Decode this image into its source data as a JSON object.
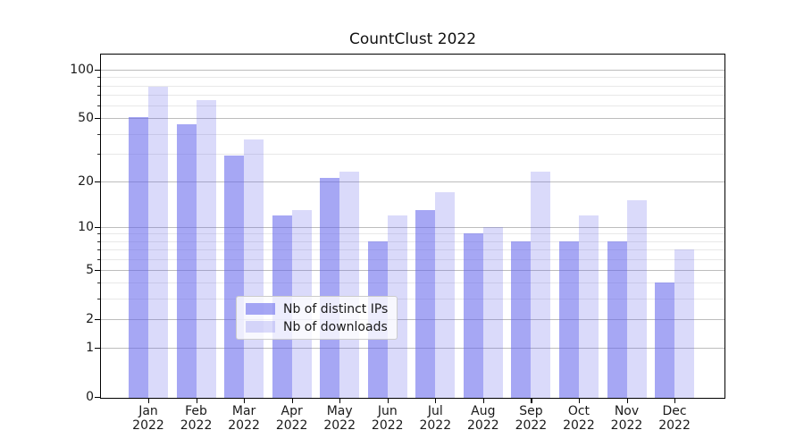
{
  "title": "CountClust 2022",
  "chart_data": {
    "type": "bar",
    "title": "CountClust 2022",
    "categories": [
      "Jan 2022",
      "Feb 2022",
      "Mar 2022",
      "Apr 2022",
      "May 2022",
      "Jun 2022",
      "Jul 2022",
      "Aug 2022",
      "Sep 2022",
      "Oct 2022",
      "Nov 2022",
      "Dec 2022"
    ],
    "x_months": [
      "Jan",
      "Feb",
      "Mar",
      "Apr",
      "May",
      "Jun",
      "Jul",
      "Aug",
      "Sep",
      "Oct",
      "Nov",
      "Dec"
    ],
    "x_year": "2022",
    "series": [
      {
        "name": "Nb of distinct IPs",
        "values": [
          51,
          46,
          29,
          12,
          21,
          8,
          13,
          9,
          8,
          8,
          8,
          4
        ],
        "color": "rgba(96,98,235,0.56)"
      },
      {
        "name": "Nb of downloads",
        "values": [
          78,
          65,
          37,
          13,
          23,
          12,
          17,
          10,
          23,
          12,
          15,
          7
        ],
        "color": "rgba(96,98,235,0.235)"
      }
    ],
    "xlabel": "",
    "ylabel": "",
    "yscale": "log1p",
    "ylim": [
      0,
      124
    ],
    "y_major_ticks": [
      0,
      1,
      2,
      5,
      10,
      20,
      50,
      100
    ],
    "y_minor_gridlines": [
      3,
      4,
      6,
      7,
      8,
      9,
      30,
      40,
      60,
      70,
      80,
      90
    ],
    "grid": true,
    "legend_position": "lower center"
  },
  "legend": {
    "items": [
      {
        "label": "Nb of distinct IPs",
        "color": "rgba(96,98,235,0.56)"
      },
      {
        "label": "Nb of downloads",
        "color": "rgba(96,98,235,0.235)"
      }
    ]
  },
  "colors": {
    "bar_dark": "rgba(96,98,235,0.56)",
    "bar_light": "rgba(96,98,235,0.235)",
    "grid_major": "#bdbdbd",
    "grid_minor": "#e8e8e8",
    "spine": "#000000",
    "text": "#1a1a1a",
    "background": "#ffffff"
  }
}
